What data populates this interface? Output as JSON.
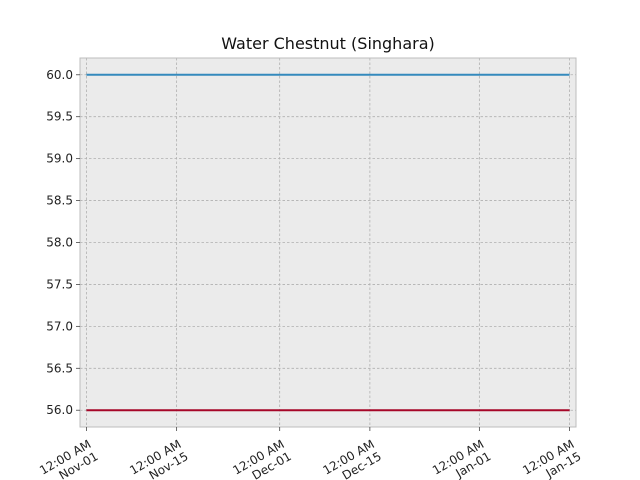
{
  "chart_data": {
    "type": "line",
    "title": "Water Chestnut (Singhara)",
    "xlabel": "",
    "ylabel": "",
    "x_axis": {
      "type": "time",
      "range": [
        "2023-11-01",
        "2024-01-15"
      ],
      "ticks": [
        {
          "date": "2023-11-01",
          "line1": "12:00 AM",
          "line2": "Nov-01"
        },
        {
          "date": "2023-11-15",
          "line1": "12:00 AM",
          "line2": "Nov-15"
        },
        {
          "date": "2023-12-01",
          "line1": "12:00 AM",
          "line2": "Dec-01"
        },
        {
          "date": "2023-12-15",
          "line1": "12:00 AM",
          "line2": "Dec-15"
        },
        {
          "date": "2024-01-01",
          "line1": "12:00 AM",
          "line2": "Jan-01"
        },
        {
          "date": "2024-01-15",
          "line1": "12:00 AM",
          "line2": "Jan-15"
        }
      ]
    },
    "y_axis": {
      "ylim": [
        55.8,
        60.2
      ],
      "ticks": [
        "56.0",
        "56.5",
        "57.0",
        "57.5",
        "58.0",
        "58.5",
        "59.0",
        "59.5",
        "60.0"
      ]
    },
    "grid": true,
    "background": "#ebebeb",
    "series": [
      {
        "color": "#348abd",
        "x": [
          "2023-11-01",
          "2024-01-15"
        ],
        "values": [
          60.0,
          60.0
        ]
      },
      {
        "color": "#a60628",
        "x": [
          "2023-11-01",
          "2024-01-15"
        ],
        "values": [
          56.0,
          56.0
        ]
      }
    ]
  }
}
